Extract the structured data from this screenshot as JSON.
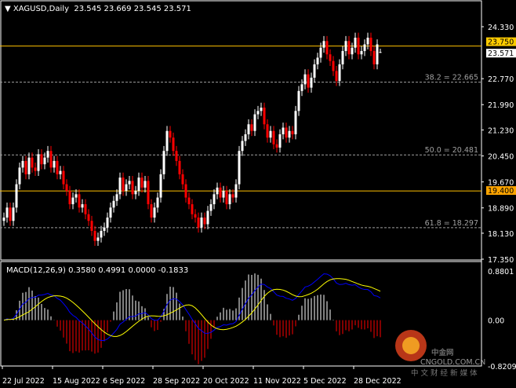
{
  "header": {
    "symbol": "XAGUSD,Daily",
    "ohlc": "23.545 23.669 23.545 23.571"
  },
  "colors": {
    "background": "#000000",
    "bull": "#ffffff",
    "bear": "#ff0000",
    "hline": "#ffc000",
    "label_gold": "#ffcc00",
    "label_orange": "#ffa500",
    "fib": "#a0a0a0",
    "macd": "#0000ff",
    "signal": "#ffff00"
  },
  "chart_data": {
    "type": "candlestick",
    "symbol": "XAGUSD",
    "timeframe": "Daily",
    "ylim": [
      17.35,
      24.33
    ],
    "y_ticks": [
      "24.330",
      "22.770",
      "21.990",
      "21.230",
      "20.450",
      "19.670",
      "18.890",
      "18.130",
      "17.350"
    ],
    "x_ticks": [
      "22 Jul 2022",
      "15 Aug 2022",
      "6 Sep 2022",
      "28 Sep 2022",
      "20 Oct 2022",
      "11 Nov 2022",
      "5 Dec 2022",
      "28 Dec 2022"
    ],
    "closes": [
      18.6,
      18.9,
      18.5,
      18.9,
      19.6,
      20.1,
      20.3,
      19.9,
      20.4,
      20.1,
      20.0,
      20.5,
      20.2,
      20.4,
      20.6,
      20.1,
      20.3,
      19.9,
      20.0,
      19.6,
      19.4,
      19.0,
      19.2,
      19.3,
      18.9,
      19.0,
      18.7,
      18.5,
      18.2,
      17.9,
      18.0,
      18.2,
      18.3,
      18.6,
      18.9,
      19.1,
      19.3,
      19.8,
      19.4,
      19.6,
      19.7,
      19.3,
      19.4,
      19.8,
      19.5,
      19.7,
      19.0,
      18.6,
      18.9,
      19.2,
      19.9,
      20.6,
      21.2,
      21.0,
      20.6,
      20.3,
      19.9,
      19.6,
      19.2,
      19.0,
      18.7,
      18.6,
      18.3,
      18.6,
      18.4,
      18.8,
      19.0,
      19.3,
      19.5,
      19.2,
      19.4,
      19.0,
      19.3,
      19.2,
      19.6,
      20.6,
      20.9,
      21.1,
      21.4,
      21.2,
      21.7,
      21.8,
      21.9,
      21.4,
      21.0,
      21.2,
      20.8,
      20.7,
      21.1,
      21.3,
      21.0,
      21.2,
      21.1,
      21.8,
      22.4,
      22.6,
      22.9,
      22.5,
      22.8,
      23.2,
      23.4,
      23.7,
      23.9,
      23.5,
      23.3,
      23.0,
      22.7,
      23.2,
      23.6,
      23.9,
      23.5,
      23.7,
      24.0,
      23.5,
      23.6,
      23.8,
      24.0,
      23.6,
      23.2,
      23.8,
      23.571
    ],
    "last_bar": {
      "open": 23.545,
      "high": 23.669,
      "low": 23.545,
      "close": 23.571
    },
    "horizontal_lines": [
      {
        "price": 23.75,
        "label": "23.750"
      },
      {
        "price": 19.4,
        "label": "19.400"
      }
    ],
    "current_price_label": "23.571",
    "fibonacci": [
      {
        "level": "38.2",
        "price": 22.665,
        "label": "38.2 = 22.665"
      },
      {
        "level": "50.0",
        "price": 20.481,
        "label": "50.0 = 20.481"
      },
      {
        "level": "61.8",
        "price": 18.297,
        "label": "61.8 = 18.297"
      }
    ],
    "macd": {
      "label": "MACD(12,26,9) 0.3580 0.4991 0.0000 -0.1833",
      "ylim": [
        -0.8209,
        0.8801
      ],
      "y_ticks": [
        "0.8801",
        "0.00",
        "-0.8209"
      ]
    }
  },
  "watermark": {
    "brand": "中金网",
    "domain": "CNGOLD.COM.CN",
    "tagline": "中 文 财 经 新 媒 体"
  }
}
